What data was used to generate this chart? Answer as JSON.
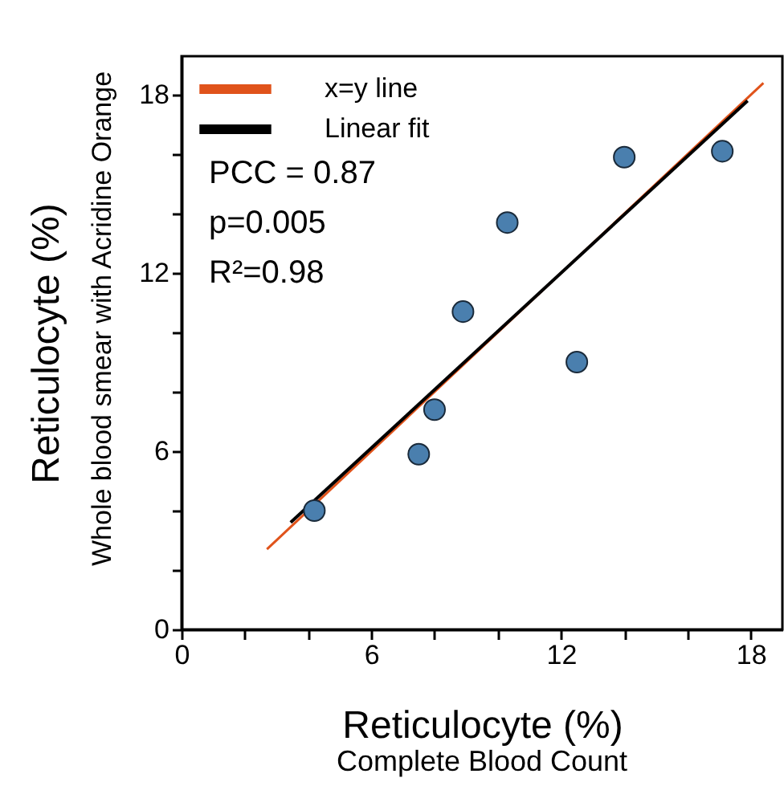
{
  "chart_data": {
    "type": "scatter",
    "xlabel": "Reticulocyte (%)",
    "ylabel": "Reticulocyte (%)",
    "annotations": [
      "PCC = 0.87",
      "p=0.005",
      "R²=0.98",
      "Complete Blood Count",
      "Whole blood smear with Acridine Orange"
    ],
    "xlim": [
      0,
      19
    ],
    "ylim": [
      0,
      19.3
    ],
    "xticks": [
      0,
      {
        "value": 2,
        "label": null
      },
      {
        "value": 4,
        "label": null
      },
      6,
      {
        "value": 8,
        "label": null
      },
      {
        "value": 10,
        "label": null
      },
      12,
      {
        "value": 14,
        "label": null
      },
      {
        "value": 16,
        "label": null
      },
      18
    ],
    "yticks": [
      0,
      {
        "value": 2,
        "label": null
      },
      {
        "value": 4,
        "label": null
      },
      6,
      {
        "value": 8,
        "label": null
      },
      {
        "value": 10,
        "label": null
      },
      12,
      {
        "value": 14,
        "label": null
      },
      {
        "value": 16,
        "label": null
      },
      18
    ],
    "legend": "top left",
    "series": [
      {
        "type": "line",
        "name": "x=y line",
        "color": "#e0531b",
        "x": [
          2.7,
          18.4
        ],
        "values": [
          2.7,
          18.4
        ]
      },
      {
        "type": "line",
        "name": "Linear fit",
        "color": "#000000",
        "x": [
          3.45,
          17.9
        ],
        "values": [
          3.6,
          17.8
        ]
      },
      {
        "marker": "circle",
        "color": "#4a7fae",
        "x": [
          4.2,
          7.5,
          8.0,
          8.9,
          10.3,
          12.5,
          14.0,
          17.1
        ],
        "values": [
          4.0,
          5.9,
          7.4,
          10.7,
          13.7,
          9.0,
          15.9,
          16.1
        ]
      }
    ]
  }
}
